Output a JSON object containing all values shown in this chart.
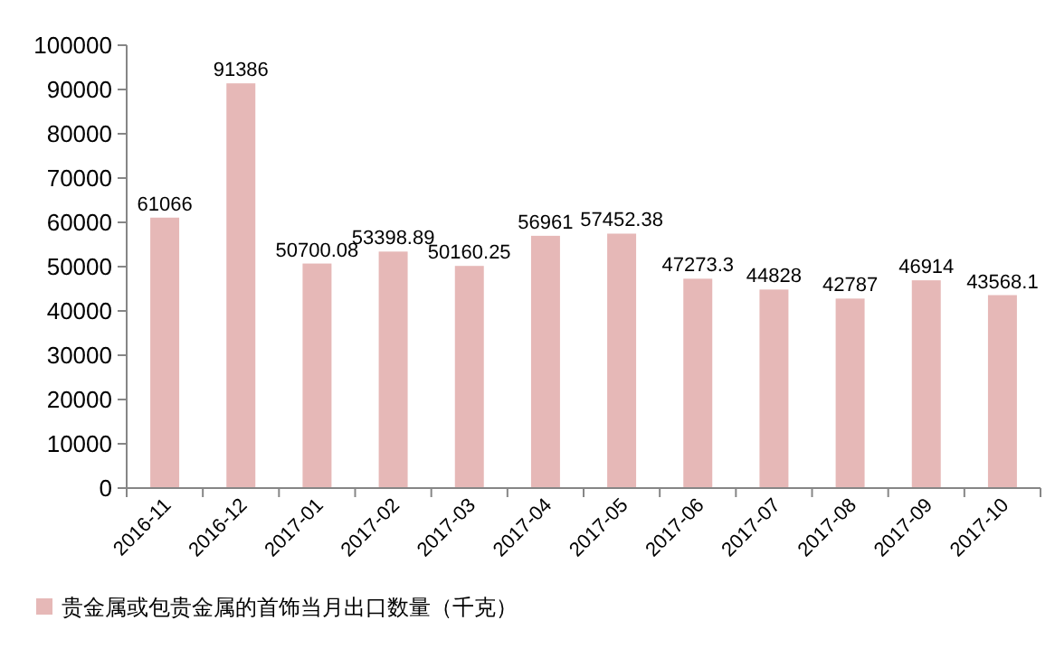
{
  "chart_data": {
    "type": "bar",
    "categories": [
      "2016-11",
      "2016-12",
      "2017-01",
      "2017-02",
      "2017-03",
      "2017-04",
      "2017-05",
      "2017-06",
      "2017-07",
      "2017-08",
      "2017-09",
      "2017-10"
    ],
    "series": [
      {
        "name": "贵金属或包贵金属的首饰当月出口数量（千克）",
        "color": "#e6b8b7",
        "values": [
          61066,
          91386,
          50700.08,
          53398.89,
          50160.25,
          56961,
          57452.38,
          47273.3,
          44828,
          42787,
          46914,
          43568.1
        ]
      }
    ],
    "value_labels": [
      "61066",
      "91386",
      "50700.08",
      "53398.89",
      "50160.25",
      "56961",
      "57452.38",
      "47273.3",
      "44828",
      "42787",
      "46914",
      "43568.1"
    ],
    "ylim": [
      0,
      100000
    ],
    "yticks": [
      0,
      10000,
      20000,
      30000,
      40000,
      50000,
      60000,
      70000,
      80000,
      90000,
      100000
    ],
    "grid": false,
    "legend": "bottom left"
  }
}
